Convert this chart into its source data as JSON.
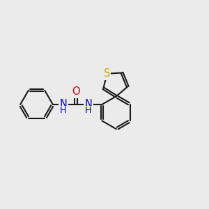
{
  "bg_color": "#ebebeb",
  "bond_color": "#1a1a1a",
  "bond_width": 1.5,
  "atom_colors": {
    "N": "#0000dd",
    "O": "#dd0000",
    "S": "#ccaa00",
    "C": "#1a1a1a"
  },
  "font_size_atom": 10.5,
  "font_size_h": 9.0
}
